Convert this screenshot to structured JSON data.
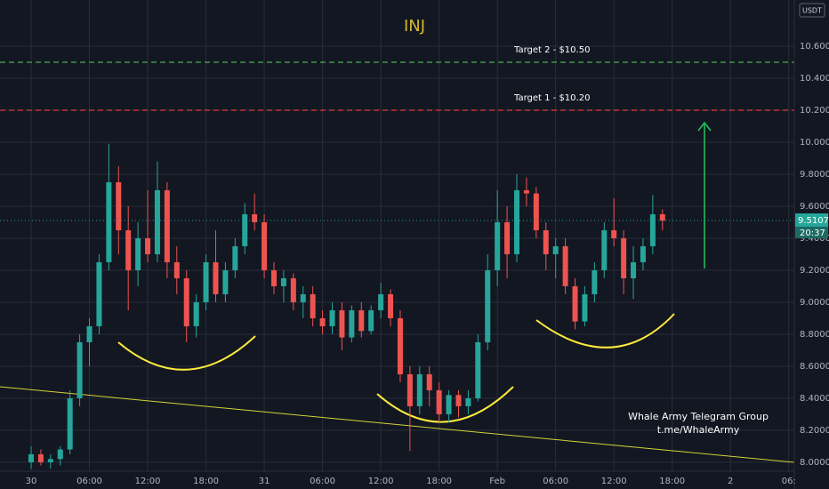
{
  "chart_data": {
    "type": "candlestick",
    "title": "INJ",
    "currency": "USDT",
    "categories": [
      "30",
      null,
      null,
      null,
      null,
      null,
      "06:00",
      null,
      null,
      null,
      null,
      null,
      "12:00",
      null,
      null,
      null,
      null,
      null,
      "18:00",
      null,
      null,
      null,
      null,
      null,
      "31",
      null,
      null,
      null,
      null,
      null,
      "06:00",
      null,
      null,
      null,
      null,
      null,
      "12:00",
      null,
      null,
      null,
      null,
      null,
      "18:00",
      null,
      null,
      null,
      null,
      null,
      "Feb",
      null,
      null,
      null,
      null,
      null,
      "06:00",
      null,
      null,
      null,
      null,
      null,
      "12:00",
      null,
      null,
      null,
      null,
      null,
      "18:00",
      null,
      null,
      null,
      null,
      null,
      "2",
      null,
      null,
      null,
      null,
      null,
      "06:"
    ],
    "open": [
      8.0,
      8.05,
      8.0,
      8.02,
      8.08,
      8.4,
      8.75,
      8.85,
      9.25,
      9.75,
      9.45,
      9.2,
      9.4,
      9.3,
      9.7,
      9.25,
      9.15,
      8.85,
      9.0,
      9.25,
      9.05,
      9.2,
      9.35,
      9.55,
      9.5,
      9.2,
      9.1,
      9.15,
      9.0,
      9.05,
      8.9,
      8.85,
      8.95,
      8.78,
      8.95,
      8.82,
      8.95,
      9.05,
      8.9,
      8.55,
      8.35,
      8.55,
      8.45,
      8.3,
      8.42,
      8.35,
      8.4,
      8.75,
      9.2,
      9.5,
      9.3,
      9.7,
      9.68,
      9.45,
      9.3,
      9.35,
      9.1,
      8.88,
      9.05,
      9.2,
      9.45,
      9.4,
      9.15,
      9.25,
      9.35,
      9.55,
      null,
      null,
      null,
      null,
      null,
      null,
      null,
      null,
      null,
      null,
      null,
      null,
      null
    ],
    "high": [
      8.1,
      8.08,
      8.05,
      8.1,
      8.45,
      8.8,
      8.9,
      9.3,
      9.99,
      9.85,
      9.6,
      9.5,
      9.7,
      9.88,
      9.75,
      9.35,
      9.2,
      9.05,
      9.3,
      9.45,
      9.25,
      9.4,
      9.62,
      9.68,
      9.55,
      9.25,
      9.2,
      9.18,
      9.1,
      9.1,
      8.95,
      9.0,
      9.0,
      8.98,
      9.0,
      8.98,
      9.12,
      9.08,
      8.95,
      8.6,
      8.6,
      8.6,
      8.5,
      8.45,
      8.45,
      8.45,
      8.8,
      9.3,
      9.7,
      9.6,
      9.8,
      9.78,
      9.72,
      9.5,
      9.4,
      9.4,
      9.15,
      9.1,
      9.25,
      9.5,
      9.65,
      9.45,
      9.35,
      9.4,
      9.67,
      9.58,
      null,
      null,
      null,
      null,
      null,
      null,
      null,
      null,
      null,
      null,
      null,
      null,
      null
    ],
    "low": [
      7.96,
      7.98,
      7.96,
      7.98,
      8.05,
      8.35,
      8.6,
      8.8,
      9.2,
      9.3,
      8.95,
      9.1,
      9.25,
      9.25,
      9.15,
      9.05,
      8.75,
      8.78,
      8.95,
      9.0,
      9.0,
      9.15,
      9.3,
      9.45,
      9.15,
      9.05,
      9.0,
      8.95,
      8.9,
      8.85,
      8.8,
      8.8,
      8.7,
      8.75,
      8.78,
      8.8,
      8.9,
      8.85,
      8.5,
      8.07,
      8.3,
      8.35,
      8.25,
      8.25,
      8.28,
      8.3,
      8.38,
      8.7,
      9.1,
      9.15,
      9.25,
      9.6,
      9.4,
      9.2,
      9.15,
      9.05,
      8.83,
      8.85,
      9.0,
      9.15,
      9.35,
      9.05,
      9.02,
      9.2,
      9.3,
      9.45,
      null,
      null,
      null,
      null,
      null,
      null,
      null,
      null,
      null,
      null,
      null,
      null,
      null
    ],
    "close": [
      8.05,
      8.0,
      8.02,
      8.08,
      8.4,
      8.75,
      8.85,
      9.25,
      9.75,
      9.45,
      9.2,
      9.4,
      9.3,
      9.7,
      9.25,
      9.15,
      8.85,
      9.0,
      9.25,
      9.05,
      9.2,
      9.35,
      9.55,
      9.5,
      9.2,
      9.1,
      9.15,
      9.0,
      9.05,
      8.9,
      8.85,
      8.95,
      8.78,
      8.95,
      8.82,
      8.95,
      9.05,
      8.9,
      8.55,
      8.35,
      8.55,
      8.45,
      8.3,
      8.42,
      8.35,
      8.4,
      8.75,
      9.2,
      9.5,
      9.3,
      9.7,
      9.68,
      9.45,
      9.3,
      9.35,
      9.1,
      8.88,
      9.05,
      9.2,
      9.45,
      9.4,
      9.15,
      9.25,
      9.35,
      9.55,
      9.51,
      null,
      null,
      null,
      null,
      null,
      null,
      null,
      null,
      null,
      null,
      null,
      null,
      null
    ],
    "up_color": "#26a69a",
    "down_color": "#ef5350",
    "ylim": [
      7.944,
      10.889
    ],
    "yticks": [
      {
        "value": 8.0,
        "label": "8.0000"
      },
      {
        "value": 8.2,
        "label": "8.2000"
      },
      {
        "value": 8.4,
        "label": "8.4000"
      },
      {
        "value": 8.6,
        "label": "8.6000"
      },
      {
        "value": 8.8,
        "label": "8.8000"
      },
      {
        "value": 9.0,
        "label": "9.0000"
      },
      {
        "value": 9.2,
        "label": "9.2000"
      },
      {
        "value": 9.4,
        "label": "9.4000"
      },
      {
        "value": 9.6,
        "label": "9.6000"
      },
      {
        "value": 9.8,
        "label": "9.8000"
      },
      {
        "value": 10.0,
        "label": "10.0000"
      },
      {
        "value": 10.2,
        "label": "10.2000"
      },
      {
        "value": 10.4,
        "label": "10.4000"
      },
      {
        "value": 10.6,
        "label": "10.6000"
      }
    ],
    "grid": true,
    "target_lines": [
      {
        "name": "Target 2 - $10.50",
        "value": 10.5,
        "color": "#4caf50"
      },
      {
        "name": "Target 1 - $10.20",
        "value": 10.2,
        "color": "#e53935"
      }
    ],
    "last_price": 9.5107,
    "countdown": "20:37",
    "watermark": [
      "Whale Army Telegram Group",
      "t.me/WhaleArmy"
    ]
  }
}
